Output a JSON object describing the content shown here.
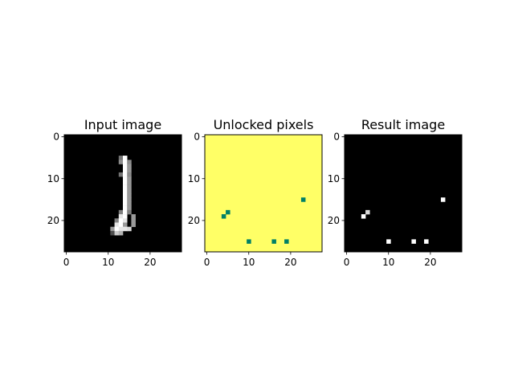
{
  "figure": {
    "background": "#ffffff"
  },
  "chart_data": [
    {
      "type": "heatmap",
      "title": "Input image",
      "colormap": "gray",
      "grid": "off",
      "xlim": [
        -0.5,
        27.5
      ],
      "ylim": [
        27.5,
        -0.5
      ],
      "xticks": [
        0,
        10,
        20
      ],
      "yticks": [
        0,
        10,
        20
      ],
      "shape": [
        28,
        28
      ],
      "background_value": 0,
      "pixels": [
        {
          "x": 13,
          "y": 5,
          "v": 0.45
        },
        {
          "x": 14,
          "y": 5,
          "v": 1.0
        },
        {
          "x": 13,
          "y": 6,
          "v": 0.55
        },
        {
          "x": 14,
          "y": 6,
          "v": 1.0
        },
        {
          "x": 15,
          "y": 6,
          "v": 0.55
        },
        {
          "x": 14,
          "y": 7,
          "v": 1.0
        },
        {
          "x": 15,
          "y": 7,
          "v": 0.6
        },
        {
          "x": 14,
          "y": 8,
          "v": 1.0
        },
        {
          "x": 15,
          "y": 8,
          "v": 0.6
        },
        {
          "x": 13,
          "y": 9,
          "v": 0.45
        },
        {
          "x": 14,
          "y": 9,
          "v": 1.0
        },
        {
          "x": 15,
          "y": 9,
          "v": 0.55
        },
        {
          "x": 14,
          "y": 10,
          "v": 1.0
        },
        {
          "x": 15,
          "y": 10,
          "v": 0.6
        },
        {
          "x": 14,
          "y": 11,
          "v": 1.0
        },
        {
          "x": 15,
          "y": 11,
          "v": 0.6
        },
        {
          "x": 14,
          "y": 12,
          "v": 1.0
        },
        {
          "x": 15,
          "y": 12,
          "v": 0.6
        },
        {
          "x": 14,
          "y": 13,
          "v": 1.0
        },
        {
          "x": 15,
          "y": 13,
          "v": 0.6
        },
        {
          "x": 14,
          "y": 14,
          "v": 1.0
        },
        {
          "x": 15,
          "y": 14,
          "v": 0.6
        },
        {
          "x": 14,
          "y": 15,
          "v": 1.0
        },
        {
          "x": 15,
          "y": 15,
          "v": 0.6
        },
        {
          "x": 14,
          "y": 16,
          "v": 1.0
        },
        {
          "x": 15,
          "y": 16,
          "v": 0.6
        },
        {
          "x": 14,
          "y": 17,
          "v": 1.0
        },
        {
          "x": 15,
          "y": 17,
          "v": 0.6
        },
        {
          "x": 13,
          "y": 18,
          "v": 0.5
        },
        {
          "x": 14,
          "y": 18,
          "v": 1.0
        },
        {
          "x": 15,
          "y": 18,
          "v": 0.5
        },
        {
          "x": 13,
          "y": 19,
          "v": 0.9
        },
        {
          "x": 14,
          "y": 19,
          "v": 1.0
        },
        {
          "x": 16,
          "y": 19,
          "v": 0.6
        },
        {
          "x": 12,
          "y": 20,
          "v": 0.5
        },
        {
          "x": 13,
          "y": 20,
          "v": 1.0
        },
        {
          "x": 14,
          "y": 20,
          "v": 0.9
        },
        {
          "x": 16,
          "y": 20,
          "v": 0.6
        },
        {
          "x": 12,
          "y": 21,
          "v": 0.9
        },
        {
          "x": 13,
          "y": 21,
          "v": 1.0
        },
        {
          "x": 14,
          "y": 21,
          "v": 0.6
        },
        {
          "x": 16,
          "y": 21,
          "v": 0.6
        },
        {
          "x": 11,
          "y": 22,
          "v": 0.6
        },
        {
          "x": 12,
          "y": 22,
          "v": 1.0
        },
        {
          "x": 13,
          "y": 22,
          "v": 0.9
        },
        {
          "x": 14,
          "y": 22,
          "v": 0.9
        },
        {
          "x": 15,
          "y": 22,
          "v": 0.85
        },
        {
          "x": 11,
          "y": 23,
          "v": 0.3
        },
        {
          "x": 12,
          "y": 23,
          "v": 0.8
        },
        {
          "x": 13,
          "y": 23,
          "v": 0.7
        }
      ]
    },
    {
      "type": "heatmap",
      "title": "Unlocked pixels",
      "colormap": "summer",
      "colors": {
        "unlocked": "#ffff66",
        "locked": "#008066"
      },
      "grid": "off",
      "xlim": [
        -0.5,
        27.5
      ],
      "ylim": [
        27.5,
        -0.5
      ],
      "xticks": [
        0,
        10,
        20
      ],
      "yticks": [
        0,
        10,
        20
      ],
      "shape": [
        28,
        28
      ],
      "background_value": 1,
      "pixels": [
        {
          "x": 23,
          "y": 15,
          "v": 0
        },
        {
          "x": 5,
          "y": 18,
          "v": 0
        },
        {
          "x": 4,
          "y": 19,
          "v": 0
        },
        {
          "x": 10,
          "y": 25,
          "v": 0
        },
        {
          "x": 16,
          "y": 25,
          "v": 0
        },
        {
          "x": 19,
          "y": 25,
          "v": 0
        }
      ]
    },
    {
      "type": "heatmap",
      "title": "Result image",
      "colormap": "gray",
      "grid": "off",
      "xlim": [
        -0.5,
        27.5
      ],
      "ylim": [
        27.5,
        -0.5
      ],
      "xticks": [
        0,
        10,
        20
      ],
      "yticks": [
        0,
        10,
        20
      ],
      "shape": [
        28,
        28
      ],
      "background_value": 0,
      "base": 0,
      "changed_pixels": [
        {
          "x": 23,
          "y": 15,
          "v": 1.0
        },
        {
          "x": 5,
          "y": 18,
          "v": 0.85
        },
        {
          "x": 4,
          "y": 19,
          "v": 1.0
        },
        {
          "x": 10,
          "y": 25,
          "v": 1.0
        },
        {
          "x": 16,
          "y": 25,
          "v": 1.0
        },
        {
          "x": 19,
          "y": 25,
          "v": 1.0
        }
      ]
    }
  ]
}
